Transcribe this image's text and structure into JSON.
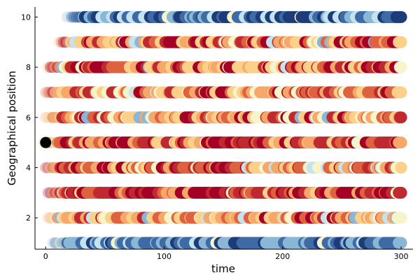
{
  "chart_data": {
    "type": "scatter",
    "title": "",
    "xlabel": "time",
    "ylabel": "Geographical position",
    "xlim": [
      -9,
      310
    ],
    "ylim": [
      0.75,
      10.4
    ],
    "xticks": [
      0,
      100,
      200,
      300
    ],
    "xtick_labels": [
      "0",
      "100",
      "200",
      "300"
    ],
    "yticks": [
      2,
      4,
      6,
      8,
      10
    ],
    "ytick_labels": [
      "2",
      "4",
      "6",
      "8",
      "10"
    ],
    "grid": false,
    "legend": "none",
    "time_range": [
      0,
      300
    ],
    "palette": [
      "#1d3c78",
      "#3f6aa6",
      "#8ab7d6",
      "#c4e3ee",
      "#f7f4cc",
      "#fdd08a",
      "#f6a86a",
      "#de6240",
      "#bf2a30",
      "#a50026"
    ],
    "rows": [
      {
        "position": 1,
        "start": 6,
        "mix": [
          4,
          8,
          5,
          3,
          1,
          0,
          0,
          0,
          0,
          0
        ]
      },
      {
        "position": 2,
        "start": 2,
        "mix": [
          0,
          0,
          1,
          2,
          4,
          8,
          7,
          5,
          3,
          1
        ]
      },
      {
        "position": 3,
        "start": 2,
        "mix": [
          0,
          0,
          0,
          0,
          1,
          2,
          3,
          4,
          7,
          9
        ]
      },
      {
        "position": 4,
        "start": 0,
        "mix": [
          0,
          0,
          0,
          1,
          2,
          5,
          6,
          6,
          4,
          3
        ]
      },
      {
        "position": 5,
        "start": -2,
        "mix": [
          0,
          0,
          0,
          0,
          1,
          3,
          4,
          6,
          6,
          7
        ]
      },
      {
        "position": 6,
        "start": 0,
        "mix": [
          0,
          0,
          1,
          1,
          3,
          6,
          6,
          5,
          3,
          2
        ]
      },
      {
        "position": 7,
        "start": 0,
        "mix": [
          0,
          0,
          0,
          1,
          3,
          7,
          7,
          5,
          3,
          2
        ]
      },
      {
        "position": 8,
        "start": 0,
        "mix": [
          0,
          0,
          1,
          1,
          2,
          6,
          6,
          4,
          4,
          7
        ]
      },
      {
        "position": 9,
        "start": 11,
        "mix": [
          0,
          0,
          1,
          1,
          2,
          6,
          6,
          4,
          5,
          5
        ]
      },
      {
        "position": 10,
        "start": 18,
        "mix": [
          6,
          8,
          5,
          3,
          1,
          0,
          0,
          0,
          0,
          0
        ]
      }
    ],
    "initial_point": {
      "time": 0,
      "position": 5,
      "color": "#000000"
    }
  }
}
